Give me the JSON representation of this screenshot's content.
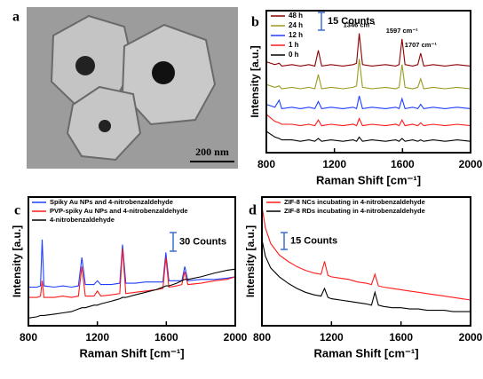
{
  "image": {
    "label": "a",
    "scale_bar": "200 nm"
  },
  "chart_data": [
    {
      "type": "line",
      "panel_label": "b",
      "x_label": "Raman Shift [cm⁻¹]",
      "y_label": "Intensity [a.u.]",
      "xlim": [
        800,
        2000
      ],
      "xticks": [
        800,
        1200,
        1600,
        2000
      ],
      "ylim": [
        0,
        100
      ],
      "scale_bar": "15 Counts",
      "annotations": [
        {
          "text": "1346 cm⁻¹",
          "x": 1346
        },
        {
          "text": "1597 cm⁻¹",
          "x": 1597
        },
        {
          "text": "1707 cm⁻¹",
          "x": 1707
        }
      ],
      "x": [
        800,
        850,
        875,
        890,
        950,
        1000,
        1050,
        1085,
        1105,
        1125,
        1180,
        1250,
        1310,
        1330,
        1346,
        1365,
        1420,
        1500,
        1560,
        1580,
        1597,
        1615,
        1660,
        1690,
        1707,
        1725,
        1780,
        1850,
        1920,
        2000
      ],
      "series": [
        {
          "name": "48 h",
          "color": "#8b0000",
          "values": [
            64,
            62,
            63,
            61,
            62,
            61,
            62,
            61,
            72,
            61,
            62,
            61,
            62,
            63,
            84,
            62,
            61,
            62,
            61,
            62,
            80,
            62,
            61,
            62,
            70,
            61,
            62,
            61,
            62,
            61
          ]
        },
        {
          "name": "24 h",
          "color": "#9a9a1e",
          "values": [
            48,
            46,
            47,
            45,
            46,
            45,
            46,
            45,
            55,
            45,
            46,
            45,
            46,
            47,
            66,
            46,
            45,
            46,
            45,
            46,
            62,
            46,
            45,
            46,
            52,
            45,
            46,
            45,
            46,
            45
          ]
        },
        {
          "name": "12 h",
          "color": "#1f3fff",
          "values": [
            34,
            32,
            37,
            31,
            32,
            31,
            32,
            31,
            36,
            31,
            32,
            31,
            32,
            31,
            40,
            31,
            32,
            31,
            32,
            31,
            38,
            31,
            32,
            31,
            34,
            31,
            32,
            31,
            32,
            31
          ]
        },
        {
          "name": "1 h",
          "color": "#ff1a1a",
          "values": [
            27,
            22,
            21,
            20,
            20,
            19,
            20,
            19,
            23,
            19,
            20,
            19,
            20,
            19,
            24,
            19,
            20,
            19,
            20,
            19,
            23,
            19,
            20,
            19,
            21,
            19,
            20,
            19,
            20,
            19
          ]
        },
        {
          "name": "0 h",
          "color": "#000000",
          "values": [
            15,
            11,
            10,
            9,
            9,
            8,
            9,
            8,
            10,
            8,
            9,
            8,
            9,
            8,
            11,
            8,
            9,
            8,
            9,
            8,
            10,
            8,
            9,
            8,
            9,
            8,
            9,
            8,
            9,
            8
          ]
        }
      ]
    },
    {
      "type": "line",
      "panel_label": "c",
      "x_label": "Raman Shift [cm⁻¹]",
      "y_label": "Intensity [a.u.]",
      "xlim": [
        800,
        2000
      ],
      "xticks": [
        800,
        1200,
        1600,
        2000
      ],
      "ylim": [
        0,
        100
      ],
      "scale_bar": "30 Counts",
      "x": [
        800,
        850,
        870,
        880,
        890,
        950,
        1000,
        1050,
        1090,
        1110,
        1130,
        1180,
        1200,
        1220,
        1280,
        1330,
        1346,
        1365,
        1420,
        1480,
        1540,
        1580,
        1597,
        1615,
        1660,
        1690,
        1707,
        1725,
        1800,
        1880,
        1950,
        2000
      ],
      "series": [
        {
          "name": "Spiky Au NPs and 4-nitrobenzaldehyde",
          "color": "#1f3fff",
          "values": [
            30,
            30,
            31,
            67,
            31,
            30,
            31,
            30,
            31,
            53,
            32,
            32,
            35,
            32,
            32,
            33,
            63,
            33,
            33,
            34,
            34,
            34,
            57,
            35,
            35,
            35,
            46,
            35,
            36,
            36,
            37,
            38
          ]
        },
        {
          "name": "PVP-spiky Au NPs and 4-nitrobenzaldehyde",
          "color": "#ff1a1a",
          "values": [
            22,
            22,
            23,
            35,
            22,
            22,
            23,
            22,
            23,
            46,
            23,
            23,
            27,
            23,
            24,
            25,
            60,
            25,
            26,
            27,
            28,
            29,
            53,
            30,
            31,
            32,
            42,
            32,
            33,
            35,
            36,
            38
          ]
        },
        {
          "name": "4-nitrobenzaldehyde",
          "color": "#000000",
          "values": [
            6,
            7,
            8,
            8,
            8,
            9,
            10,
            11,
            13,
            14,
            14,
            16,
            16,
            17,
            19,
            21,
            22,
            22,
            24,
            26,
            28,
            30,
            31,
            31,
            33,
            35,
            36,
            36,
            38,
            41,
            43,
            44
          ]
        }
      ]
    },
    {
      "type": "line",
      "panel_label": "d",
      "x_label": "Raman Shift [cm⁻¹]",
      "y_label": "Intensity [a.u.]",
      "xlim": [
        800,
        2000
      ],
      "xticks": [
        800,
        1200,
        1600,
        2000
      ],
      "ylim": [
        0,
        100
      ],
      "scale_bar": "15 Counts",
      "x": [
        800,
        820,
        850,
        900,
        950,
        1000,
        1050,
        1100,
        1140,
        1160,
        1180,
        1200,
        1250,
        1300,
        1350,
        1400,
        1430,
        1450,
        1470,
        1500,
        1550,
        1600,
        1650,
        1700,
        1750,
        1800,
        1850,
        1900,
        1950,
        2000
      ],
      "series": [
        {
          "name": "ZIF-8 NCs incubating in 4-nitrobenzaldehyde",
          "color": "#ff1a1a",
          "values": [
            93,
            76,
            64,
            55,
            50,
            46,
            43,
            41,
            40,
            50,
            39,
            38,
            37,
            36,
            34,
            33,
            32,
            40,
            31,
            30,
            29,
            28,
            27,
            26,
            25,
            24,
            23,
            22,
            21,
            20
          ]
        },
        {
          "name": "ZIF-8 RDs incubating in 4-nitrobenzaldehyde",
          "color": "#000000",
          "values": [
            67,
            54,
            45,
            38,
            33,
            29,
            26,
            24,
            23,
            29,
            22,
            21,
            20,
            19,
            18,
            17,
            16,
            26,
            16,
            15,
            14,
            14,
            13,
            13,
            12,
            12,
            12,
            11,
            11,
            11
          ]
        }
      ]
    }
  ]
}
